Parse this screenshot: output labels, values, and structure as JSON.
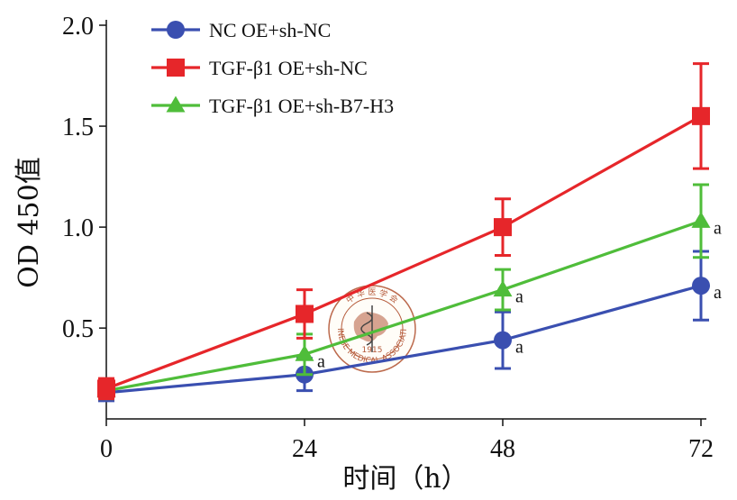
{
  "chart_data": {
    "type": "line",
    "title": "",
    "xlabel": "时间（h）",
    "ylabel": "OD 450值",
    "x": [
      0,
      24,
      48,
      72
    ],
    "x_tick_labels": [
      "0",
      "24",
      "48",
      "72"
    ],
    "xlim": [
      0,
      72
    ],
    "ylim": [
      0.05,
      2.0
    ],
    "y_ticks": [
      0.5,
      1.0,
      1.5,
      2.0
    ],
    "y_tick_labels": [
      "0.5",
      "1.0",
      "1.5",
      "2.0"
    ],
    "grid": false,
    "legend_position": "top-left",
    "series": [
      {
        "name": "NC OE+sh-NC",
        "marker": "circle",
        "color": "#3a4fb0",
        "values": [
          0.18,
          0.27,
          0.44,
          0.71
        ],
        "errors": [
          0.04,
          0.08,
          0.14,
          0.17
        ]
      },
      {
        "name": "TGF-β1 OE+sh-NC",
        "marker": "square",
        "color": "#e6262a",
        "values": [
          0.2,
          0.57,
          1.0,
          1.55
        ],
        "errors": [
          0.05,
          0.12,
          0.14,
          0.26
        ]
      },
      {
        "name": "TGF-β1 OE+sh-B7-H3",
        "marker": "triangle",
        "color": "#4fbd3a",
        "values": [
          0.19,
          0.37,
          0.69,
          1.03
        ],
        "errors": [
          0.04,
          0.1,
          0.1,
          0.18
        ]
      }
    ],
    "annotations": [
      {
        "text": "a",
        "series": 2,
        "index": 1
      },
      {
        "text": "a",
        "series": 0,
        "index": 2
      },
      {
        "text": "a",
        "series": 2,
        "index": 2
      },
      {
        "text": "a",
        "series": 2,
        "index": 3
      },
      {
        "text": "a",
        "series": 0,
        "index": 3
      }
    ],
    "watermark": {
      "text_top": "中 华 医 学 会",
      "text_bottom": "CHINESE MEDICAL ASSOCIATION",
      "year": "1915",
      "color": "#b55a3a"
    }
  }
}
